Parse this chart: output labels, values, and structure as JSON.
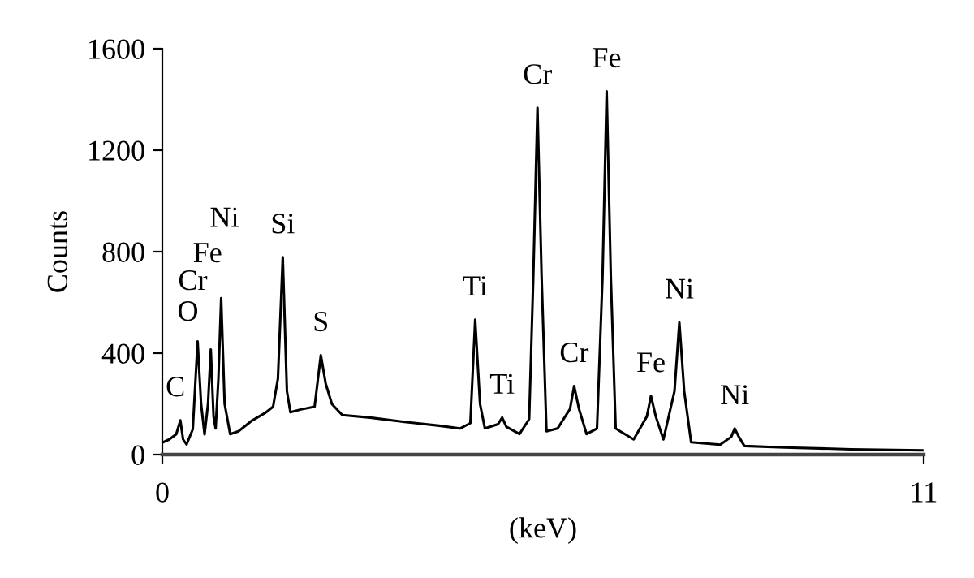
{
  "chart_data": {
    "type": "line",
    "xlabel": "(keV)",
    "ylabel": "Counts",
    "xlim": [
      0,
      11
    ],
    "xticks": [
      0,
      11
    ],
    "ylim": [
      0,
      1600
    ],
    "yticks": [
      0,
      400,
      800,
      1200,
      1600
    ],
    "grid": false,
    "legend": false,
    "marker": "none",
    "line_style": "solid",
    "series": [
      {
        "color": "#000000",
        "x": [
          0.02,
          0.1,
          0.2,
          0.26,
          0.3,
          0.35,
          0.44,
          0.51,
          0.56,
          0.61,
          0.66,
          0.7,
          0.74,
          0.77,
          0.81,
          0.85,
          0.9,
          0.98,
          1.1,
          1.3,
          1.5,
          1.6,
          1.67,
          1.74,
          1.8,
          1.85,
          2.0,
          2.2,
          2.24,
          2.29,
          2.36,
          2.45,
          2.6,
          3.0,
          3.5,
          4.0,
          4.3,
          4.45,
          4.52,
          4.59,
          4.66,
          4.85,
          4.91,
          4.97,
          5.16,
          5.3,
          5.36,
          5.42,
          5.48,
          5.55,
          5.71,
          5.89,
          5.95,
          6.02,
          6.13,
          6.28,
          6.36,
          6.42,
          6.48,
          6.55,
          6.81,
          7.0,
          7.06,
          7.13,
          7.24,
          7.4,
          7.47,
          7.54,
          7.64,
          8.06,
          8.22,
          8.27,
          8.33,
          8.41,
          8.99,
          9.95,
          10.98
        ],
        "values": [
          50,
          60,
          80,
          135,
          60,
          40,
          100,
          446,
          200,
          80,
          200,
          414,
          150,
          103,
          300,
          617,
          200,
          81,
          92,
          135,
          167,
          189,
          300,
          778,
          250,
          167,
          178,
          189,
          280,
          392,
          280,
          199,
          156,
          146,
          129,
          114,
          103,
          124,
          532,
          200,
          103,
          120,
          146,
          110,
          81,
          140,
          700,
          1367,
          700,
          92,
          103,
          180,
          270,
          180,
          81,
          103,
          700,
          1432,
          700,
          103,
          60,
          150,
          231,
          150,
          60,
          250,
          521,
          250,
          49,
          39,
          70,
          103,
          70,
          34,
          28,
          21,
          17
        ]
      }
    ],
    "annotations": [
      {
        "text": "C",
        "x": 0.26,
        "y": 135
      },
      {
        "text": "O",
        "x": 0.51,
        "y": 446
      },
      {
        "text": "Cr",
        "x": 0.51,
        "y": 446
      },
      {
        "text": "Fe",
        "x": 0.7,
        "y": 414
      },
      {
        "text": "Ni",
        "x": 0.85,
        "y": 617
      },
      {
        "text": "Si",
        "x": 1.74,
        "y": 778
      },
      {
        "text": "S",
        "x": 2.29,
        "y": 392
      },
      {
        "text": "Ti",
        "x": 4.52,
        "y": 532
      },
      {
        "text": "Ti",
        "x": 4.91,
        "y": 146
      },
      {
        "text": "Cr",
        "x": 5.42,
        "y": 1367
      },
      {
        "text": "Fe",
        "x": 6.42,
        "y": 1432
      },
      {
        "text": "Cr",
        "x": 5.95,
        "y": 270
      },
      {
        "text": "Fe",
        "x": 7.06,
        "y": 231
      },
      {
        "text": "Ni",
        "x": 7.47,
        "y": 521
      },
      {
        "text": "Ni",
        "x": 8.27,
        "y": 103
      }
    ]
  }
}
